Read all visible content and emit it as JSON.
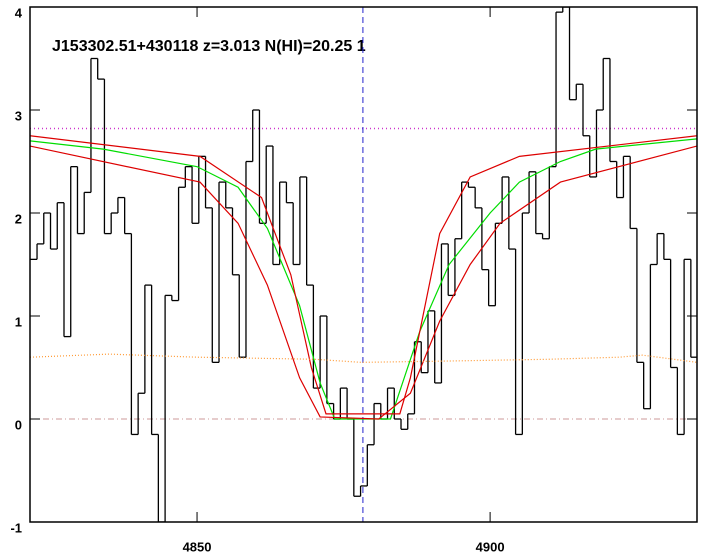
{
  "chart_data": {
    "type": "line",
    "title": "J153302.51+430118 z=3.013 N(HI)=20.25 1",
    "xlim": [
      4821.5,
      4935.3
    ],
    "ylim": [
      -1,
      4
    ],
    "xticks": [
      4850,
      4900
    ],
    "yticks": [
      -1,
      0,
      1,
      2,
      3,
      4
    ],
    "frame_color": "#000000",
    "series": [
      {
        "color": "#000000",
        "drawstyle": "steps",
        "x": [
          4822.1,
          4823.3,
          4824.4,
          4825.6,
          4826.7,
          4827.9,
          4829.0,
          4830.2,
          4831.3,
          4832.5,
          4833.6,
          4834.8,
          4835.9,
          4837.1,
          4838.2,
          4839.4,
          4840.5,
          4841.7,
          4842.8,
          4844.0,
          4845.1,
          4846.3,
          4847.4,
          4848.6,
          4849.7,
          4850.9,
          4852.0,
          4853.2,
          4854.3,
          4855.5,
          4856.6,
          4857.8,
          4858.9,
          4860.1,
          4861.2,
          4862.4,
          4863.5,
          4864.7,
          4865.8,
          4867.0,
          4868.1,
          4869.3,
          4870.4,
          4871.6,
          4872.7,
          4873.9,
          4875.0,
          4876.2,
          4877.3,
          4878.5,
          4879.6,
          4880.8,
          4881.9,
          4883.1,
          4884.2,
          4885.4,
          4886.5,
          4887.7,
          4888.8,
          4890.0,
          4891.1,
          4892.3,
          4893.4,
          4894.6,
          4895.7,
          4896.9,
          4898.0,
          4899.2,
          4900.3,
          4901.5,
          4902.6,
          4903.8,
          4904.9,
          4906.1,
          4907.2,
          4908.4,
          4909.5,
          4910.7,
          4911.8,
          4913.0,
          4914.1,
          4915.3,
          4916.4,
          4917.6,
          4918.7,
          4919.9,
          4921.0,
          4922.2,
          4923.3,
          4924.5,
          4925.6,
          4926.8,
          4927.9,
          4929.1,
          4930.2,
          4931.4,
          4932.5,
          4933.7,
          4934.8
        ],
        "values": [
          1.55,
          1.7,
          2.0,
          1.65,
          2.1,
          0.8,
          2.45,
          1.8,
          2.2,
          3.5,
          3.3,
          1.8,
          2.0,
          2.15,
          1.8,
          -0.15,
          0.25,
          1.3,
          -0.15,
          -1.0,
          1.2,
          1.15,
          2.25,
          2.45,
          1.9,
          2.55,
          2.05,
          0.55,
          2.3,
          2.05,
          1.4,
          0.6,
          2.5,
          3.0,
          1.9,
          2.65,
          1.5,
          2.3,
          2.1,
          1.5,
          2.35,
          1.3,
          0.3,
          1.0,
          0.15,
          0.0,
          0.3,
          0.0,
          -0.75,
          -0.65,
          -0.25,
          0.15,
          0.0,
          0.3,
          0.0,
          -0.1,
          0.05,
          0.75,
          0.45,
          1.05,
          0.35,
          1.7,
          1.2,
          1.75,
          2.3,
          2.25,
          2.05,
          1.45,
          1.1,
          1.9,
          2.35,
          1.65,
          -0.15,
          2.0,
          2.4,
          1.8,
          1.75,
          2.45,
          3.95,
          4.0,
          3.1,
          3.25,
          2.75,
          2.35,
          3.0,
          3.5,
          2.5,
          2.15,
          2.55,
          1.85,
          0.55,
          0.1,
          1.5,
          1.8,
          1.55,
          0.5,
          -0.15,
          1.55,
          0.6
        ]
      },
      {
        "color": "#00dd00",
        "drawstyle": "solid",
        "x": [
          4821.5,
          4834,
          4850,
          4857,
          4862,
          4867.5,
          4871,
          4873.5,
          4883,
          4888,
          4893,
          4900,
          4905,
          4912,
          4918,
          4935.3
        ],
        "values": [
          2.7,
          2.62,
          2.45,
          2.25,
          1.85,
          1.1,
          0.35,
          0,
          0,
          0.85,
          1.5,
          2.0,
          2.3,
          2.5,
          2.62,
          2.72
        ]
      },
      {
        "color": "#dd0000",
        "drawstyle": "solid",
        "x": [
          4821.5,
          4850.5,
          4861,
          4866,
          4869.5,
          4872,
          4884.6,
          4886.4,
          4891.4,
          4896.6,
          4905,
          4935.3
        ],
        "values": [
          2.75,
          2.55,
          2.15,
          1.4,
          0.5,
          0.05,
          0.05,
          0.4,
          1.8,
          2.35,
          2.55,
          2.75
        ]
      },
      {
        "color": "#dd0000",
        "drawstyle": "solid",
        "x": [
          4821.5,
          4850.5,
          4857,
          4862,
          4867.5,
          4871,
          4881,
          4886.4,
          4891.4,
          4896.6,
          4901.7,
          4912,
          4935.3
        ],
        "values": [
          2.65,
          2.3,
          1.9,
          1.3,
          0.4,
          0.02,
          0.0,
          0.25,
          0.95,
          1.5,
          1.9,
          2.3,
          2.65
        ]
      },
      {
        "color": "#ff9933",
        "drawstyle": "dotted",
        "x": [
          4821.5,
          4835,
          4850,
          4870,
          4878,
          4890,
          4910,
          4922,
          4926,
          4935.3
        ],
        "values": [
          0.6,
          0.63,
          0.6,
          0.58,
          0.55,
          0.56,
          0.58,
          0.6,
          0.62,
          0.55
        ]
      }
    ],
    "continuum": {
      "value": 2.82,
      "color": "#cc33cc"
    },
    "zero_line": {
      "value": 0,
      "color": "#cc9999"
    },
    "line_center": {
      "value": 4878.3,
      "color": "#2222cc"
    }
  }
}
